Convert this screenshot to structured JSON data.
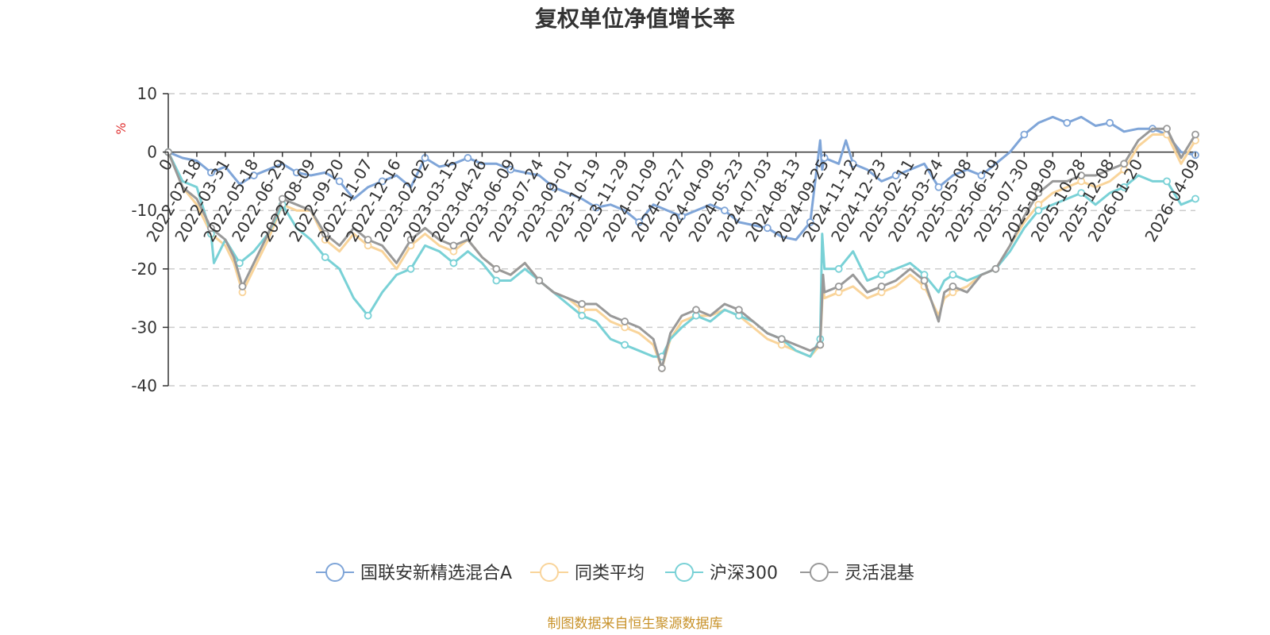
{
  "chart_data": {
    "type": "line",
    "title": "复权单位净值增长率",
    "ylabel": "%",
    "ylim": [
      -40,
      10
    ],
    "yticks": [
      "10",
      "0",
      "-10",
      "-20",
      "-30",
      "-40"
    ],
    "ytick_values": [
      10,
      0,
      -10,
      -20,
      -30,
      -40
    ],
    "x_tick_labels": [
      "0",
      "2022-02-18",
      "2022-03-31",
      "2022-05-18",
      "2022-06-29",
      "2022-08-09",
      "2022-09-20",
      "2022-11-07",
      "2022-12-16",
      "2023-02-02",
      "2023-03-15",
      "2023-04-26",
      "2023-06-09",
      "2023-07-24",
      "2023-09-01",
      "2023-10-19",
      "2023-11-29",
      "2024-01-09",
      "2024-02-27",
      "2024-04-09",
      "2024-05-23",
      "2024-07-03",
      "2024-08-13",
      "2024-09-25",
      "2024-11-12",
      "2024-12-23",
      "2025-02-11",
      "2025-03-24",
      "2025-05-08",
      "2025-06-19",
      "2025-07-30",
      "2025-09-09",
      "2025-10-28",
      "2025-12-08",
      "2026-01-20",
      "2026-04-09"
    ],
    "x_tick_positions": [
      0,
      1,
      2,
      3,
      4,
      5,
      6,
      7,
      8,
      9,
      10,
      11,
      12,
      13,
      14,
      15,
      16,
      17,
      18,
      19,
      20,
      21,
      22,
      23,
      24,
      25,
      26,
      27,
      28,
      29,
      30,
      31,
      32,
      33,
      34,
      36
    ],
    "x_range": [
      0,
      36
    ],
    "series": [
      {
        "name": "国联安新精选混合A",
        "color": "#7fa5d8",
        "x": [
          0,
          0.5,
          1,
          1.5,
          2,
          2.5,
          3,
          3.5,
          4,
          4.5,
          5,
          5.5,
          6,
          6.5,
          7,
          7.5,
          8,
          8.5,
          9,
          9.5,
          10,
          10.5,
          11,
          11.5,
          12,
          12.5,
          13,
          13.5,
          14,
          14.5,
          15,
          15.5,
          16,
          16.5,
          17,
          17.5,
          18,
          18.5,
          19,
          19.5,
          20,
          20.5,
          21,
          21.5,
          22,
          22.5,
          22.85,
          22.92,
          23,
          23.5,
          23.75,
          24,
          24.5,
          25,
          25.5,
          26,
          26.5,
          27,
          27.5,
          28,
          28.5,
          29,
          29.5,
          30,
          30.5,
          31,
          31.5,
          32,
          32.5,
          33,
          33.5,
          34,
          34.5,
          35,
          35.5,
          36
        ],
        "values": [
          0,
          -1,
          -1.5,
          -3.5,
          -2.5,
          -5.5,
          -4,
          -3,
          -2,
          -3.5,
          -4,
          -3.5,
          -5,
          -8,
          -6,
          -5,
          -4,
          -6,
          -1,
          -2.5,
          -2,
          -1,
          -2,
          -2,
          -3,
          -3.5,
          -4,
          -6,
          -7,
          -8,
          -9.5,
          -9,
          -10,
          -12,
          -9,
          -10,
          -11,
          -10,
          -9,
          -10,
          -12,
          -12.5,
          -13,
          -14.5,
          -15,
          -12,
          2,
          -3,
          -1,
          -2,
          2,
          -2,
          -3,
          -5,
          -4,
          -3,
          -2,
          -6,
          -4,
          -3,
          -4,
          -2,
          0,
          3,
          5,
          6,
          5,
          6,
          4.5,
          5,
          3.5,
          4,
          4,
          3,
          0,
          -0.5
        ]
      },
      {
        "name": "同类平均",
        "color": "#f9d49a",
        "x": [
          0,
          0.5,
          1,
          1.5,
          2,
          2.3,
          2.6,
          3,
          3.5,
          4,
          4.5,
          5,
          5.5,
          6,
          6.5,
          7,
          7.5,
          8,
          8.5,
          9,
          9.5,
          10,
          10.5,
          11,
          11.5,
          12,
          12.5,
          13,
          13.5,
          14,
          14.5,
          15,
          15.5,
          16,
          16.5,
          17,
          17.3,
          17.6,
          18,
          18.5,
          19,
          19.5,
          20,
          20.5,
          21,
          21.5,
          22,
          22.5,
          22.85,
          22.95,
          23,
          23.5,
          24,
          24.5,
          25,
          25.5,
          26,
          26.5,
          27,
          27.2,
          27.5,
          28,
          28.5,
          29,
          29.5,
          30,
          30.5,
          31,
          31.5,
          32,
          32.5,
          33,
          33.5,
          34,
          34.5,
          35,
          35.5,
          36
        ],
        "values": [
          0,
          -6,
          -9,
          -14,
          -16,
          -19,
          -24,
          -20,
          -15,
          -9,
          -10,
          -10,
          -15,
          -17,
          -14,
          -16,
          -17,
          -20,
          -16,
          -14,
          -16,
          -17,
          -15,
          -18,
          -20,
          -21,
          -19,
          -22,
          -24,
          -25,
          -27,
          -27,
          -29,
          -30,
          -31,
          -33,
          -37,
          -32,
          -29,
          -28,
          -28,
          -27,
          -28,
          -30,
          -32,
          -33,
          -34,
          -35,
          -33,
          -23,
          -25,
          -24,
          -23,
          -25,
          -24,
          -23,
          -21,
          -23,
          -28,
          -25,
          -24,
          -23,
          -21,
          -20,
          -16,
          -12,
          -9,
          -7,
          -6,
          -5,
          -6,
          -5,
          -3,
          1,
          3,
          3,
          -2,
          2
        ]
      },
      {
        "name": "沪深300",
        "color": "#79d1d6",
        "x": [
          0,
          0.5,
          1,
          1.5,
          1.6,
          2,
          2.5,
          3,
          3.5,
          4,
          4.5,
          5,
          5.5,
          6,
          6.5,
          7,
          7.5,
          8,
          8.5,
          9,
          9.5,
          10,
          10.5,
          11,
          11.5,
          12,
          12.5,
          13,
          13.5,
          14,
          14.5,
          15,
          15.5,
          16,
          16.5,
          17,
          17.3,
          17.6,
          18,
          18.5,
          19,
          19.5,
          20,
          20.5,
          21,
          21.5,
          22,
          22.5,
          22.85,
          22.92,
          23,
          23.5,
          24,
          24.5,
          25,
          25.5,
          26,
          26.5,
          27,
          27.2,
          27.5,
          28,
          28.5,
          29,
          29.5,
          30,
          30.5,
          31,
          31.5,
          32,
          32.5,
          33,
          33.5,
          34,
          34.5,
          35,
          35.5,
          36
        ],
        "values": [
          0,
          -5,
          -6,
          -14,
          -19,
          -15,
          -19,
          -17,
          -14,
          -9,
          -13,
          -15,
          -18,
          -20,
          -25,
          -28,
          -24,
          -21,
          -20,
          -16,
          -17,
          -19,
          -17,
          -19,
          -22,
          -22,
          -20,
          -22,
          -24,
          -26,
          -28,
          -29,
          -32,
          -33,
          -34,
          -35,
          -35,
          -32,
          -30,
          -28,
          -29,
          -27,
          -28,
          -29,
          -31,
          -32,
          -34,
          -35,
          -32,
          -14,
          -20,
          -20,
          -17,
          -22,
          -21,
          -20,
          -19,
          -21,
          -24,
          -22,
          -21,
          -22,
          -21,
          -20,
          -17,
          -13,
          -10,
          -9,
          -8,
          -7,
          -9,
          -7,
          -6,
          -4,
          -5,
          -5,
          -9,
          -8
        ]
      },
      {
        "name": "灵活混基",
        "color": "#999999",
        "x": [
          0,
          0.5,
          1,
          1.5,
          2,
          2.3,
          2.6,
          3,
          3.5,
          4,
          4.5,
          5,
          5.5,
          6,
          6.5,
          7,
          7.5,
          8,
          8.5,
          9,
          9.5,
          10,
          10.5,
          11,
          11.5,
          12,
          12.5,
          13,
          13.5,
          14,
          14.5,
          15,
          15.5,
          16,
          16.5,
          17,
          17.3,
          17.6,
          18,
          18.5,
          19,
          19.5,
          20,
          20.5,
          21,
          21.5,
          22,
          22.5,
          22.85,
          22.95,
          23,
          23.5,
          24,
          24.5,
          25,
          25.5,
          26,
          26.5,
          27,
          27.2,
          27.5,
          28,
          28.5,
          29,
          29.5,
          30,
          30.5,
          31,
          31.5,
          32,
          32.5,
          33,
          33.5,
          34,
          34.5,
          35,
          35.5,
          36
        ],
        "values": [
          0,
          -6,
          -8,
          -13,
          -15,
          -18,
          -23,
          -19,
          -14,
          -8,
          -9,
          -10,
          -14,
          -16,
          -13,
          -15,
          -16,
          -19,
          -15,
          -13,
          -15,
          -16,
          -15,
          -18,
          -20,
          -21,
          -19,
          -22,
          -24,
          -25,
          -26,
          -26,
          -28,
          -29,
          -30,
          -32,
          -37,
          -31,
          -28,
          -27,
          -28,
          -26,
          -27,
          -29,
          -31,
          -32,
          -33,
          -34,
          -33,
          -21,
          -24,
          -23,
          -21,
          -24,
          -23,
          -22,
          -20,
          -22,
          -29,
          -24,
          -23,
          -24,
          -21,
          -20,
          -16,
          -11,
          -7,
          -5,
          -5,
          -4,
          -4,
          -3,
          -2,
          2,
          4,
          4,
          -1,
          3
        ]
      }
    ]
  },
  "legend": [
    {
      "label": "国联安新精选混合A",
      "color": "#7fa5d8"
    },
    {
      "label": "同类平均",
      "color": "#f9d49a"
    },
    {
      "label": "沪深300",
      "color": "#79d1d6"
    },
    {
      "label": "灵活混基",
      "color": "#999999"
    }
  ],
  "source_note": "制图数据来自恒生聚源数据库",
  "colors": {
    "title": "#333333",
    "axis": "#333333",
    "grid": "#cccccc",
    "unit": "#e03030",
    "source": "#c8922a"
  }
}
